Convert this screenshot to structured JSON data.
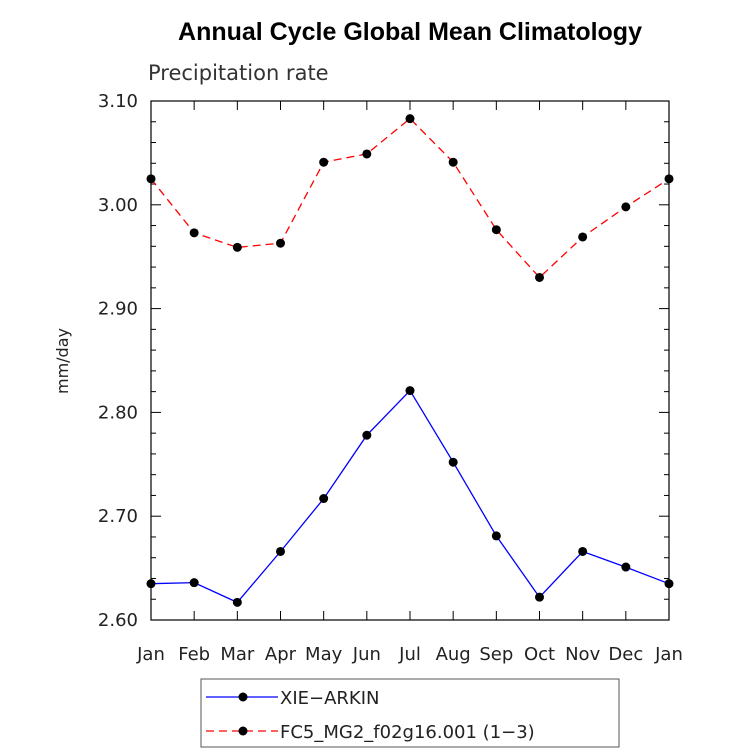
{
  "chart_data": {
    "type": "line",
    "title": "Annual Cycle Global Mean Climatology",
    "subtitle": "Precipitation rate",
    "ylabel": "mm/day",
    "xlabel": "",
    "ylim": [
      2.6,
      3.1
    ],
    "yticks": [
      "2.60",
      "2.70",
      "2.80",
      "2.90",
      "3.00",
      "3.10"
    ],
    "categories": [
      "Jan",
      "Feb",
      "Mar",
      "Apr",
      "May",
      "Jun",
      "Jul",
      "Aug",
      "Sep",
      "Oct",
      "Nov",
      "Dec",
      "Jan"
    ],
    "series": [
      {
        "name": "XIE−ARKIN",
        "color": "#0000ff",
        "line_style": "solid",
        "marker": "filled-circle",
        "values": [
          2.635,
          2.636,
          2.617,
          2.666,
          2.717,
          2.778,
          2.821,
          2.752,
          2.681,
          2.622,
          2.666,
          2.651,
          2.635
        ]
      },
      {
        "name": "FC5_MG2_f02g16.001 (1−3)",
        "color": "#ff0000",
        "line_style": "dashed",
        "marker": "filled-circle",
        "values": [
          3.025,
          2.973,
          2.959,
          2.963,
          3.041,
          3.049,
          3.083,
          3.041,
          2.976,
          2.93,
          2.969,
          2.998,
          3.025
        ]
      }
    ],
    "legend": "bottom",
    "grid": false
  }
}
